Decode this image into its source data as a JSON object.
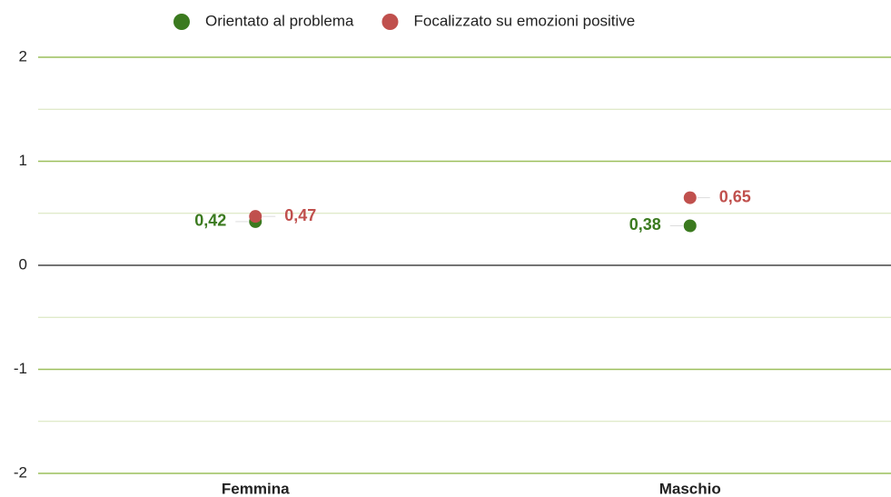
{
  "chart_data": {
    "type": "dot",
    "categories": [
      "Femmina",
      "Maschio"
    ],
    "series": [
      {
        "name": "Orientato al problema",
        "color": "#3b7a1f",
        "values": [
          0.42,
          0.38
        ],
        "value_labels": [
          "0,42",
          "0,38"
        ]
      },
      {
        "name": "Focalizzato su emozioni positive",
        "color": "#c0504d",
        "values": [
          0.47,
          0.65
        ],
        "value_labels": [
          "0,47",
          "0,65"
        ]
      }
    ],
    "ylim": [
      -2,
      2
    ],
    "yticks": [
      -2,
      -1,
      0,
      1,
      2
    ],
    "minor_yticks": [
      -1.5,
      -0.5,
      0.5,
      1.5
    ],
    "grid": true,
    "legend": "top"
  }
}
